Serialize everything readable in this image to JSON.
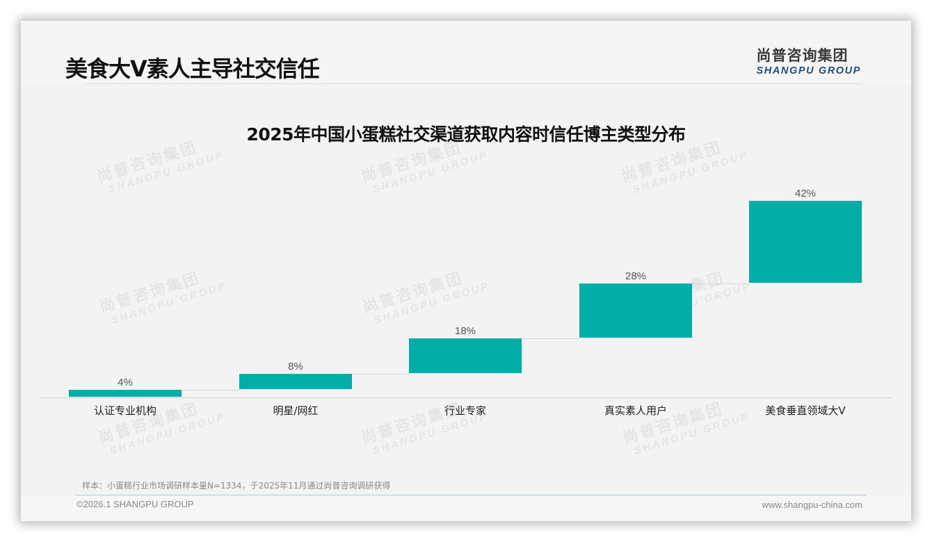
{
  "page": {
    "title": "美食大V素人主导社交信任",
    "logo_cn": "尚普咨询集团",
    "logo_en": "SHANGPU GROUP",
    "note": "样本：小蛋糕行业市场调研样本量N=1334，于2025年11月通过尚普咨询调研获得",
    "copyright": "©2026.1 SHANGPU GROUP",
    "website": "www.shangpu-china.com",
    "watermark_cn": "尚普咨询集团",
    "watermark_en": "SHANGPU GROUP"
  },
  "colors": {
    "bar": "#00aea7",
    "title": "#111111",
    "logo_en": "#1f4e79"
  },
  "chart_data": {
    "type": "bar",
    "subtype": "waterfall",
    "title": "2025年中国小蛋糕社交渠道获取内容时信任博主类型分布",
    "categories": [
      "认证专业机构",
      "明星/网红",
      "行业专家",
      "真实素人用户",
      "美食垂直领域大V"
    ],
    "values": [
      4,
      8,
      18,
      28,
      42
    ],
    "value_labels": [
      "4%",
      "8%",
      "18%",
      "28%",
      "42%"
    ],
    "unit": "%",
    "xlabel": "",
    "ylabel": "",
    "ylim": [
      0,
      100
    ],
    "grid": false,
    "legend": null
  }
}
